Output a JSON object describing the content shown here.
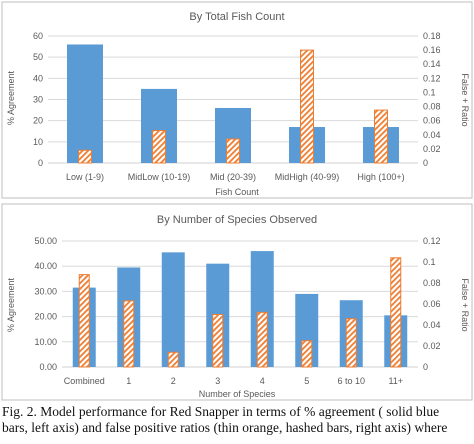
{
  "chart_data": [
    {
      "type": "bar",
      "title": "By Total Fish Count",
      "xlabel": "Fish Count",
      "ylabel": "% Agreement",
      "y2label": "False + Ratio",
      "categories": [
        "Low (1-9)",
        "MidLow (10-19)",
        "Mid (20-39)",
        "MidHigh (40-99)",
        "High (100+)"
      ],
      "ylim": [
        0,
        60
      ],
      "y2lim": [
        0,
        0.18
      ],
      "yticks": [
        "0",
        "10",
        "20",
        "30",
        "40",
        "50",
        "60"
      ],
      "y2ticks": [
        "0",
        "0.02",
        "0.04",
        "0.06",
        "0.08",
        "0.1",
        "0.12",
        "0.14",
        "0.16",
        "0.18"
      ],
      "grid": true,
      "series": [
        {
          "axis": "left",
          "style": "solid-blue",
          "values": [
            56,
            35,
            26,
            17,
            17
          ]
        },
        {
          "axis": "right",
          "style": "orange-hashed",
          "values": [
            0.018,
            0.046,
            0.034,
            0.16,
            0.075
          ]
        }
      ]
    },
    {
      "type": "bar",
      "title": "By Number of Species Observed",
      "xlabel": "Number of Species",
      "ylabel": "% Agreement",
      "y2label": "False + Ratio",
      "categories": [
        "Combined",
        "1",
        "2",
        "3",
        "4",
        "5",
        "6 to 10",
        "11+"
      ],
      "ylim": [
        0,
        50
      ],
      "y2lim": [
        0,
        0.12
      ],
      "yticks": [
        "0.00",
        "10.00",
        "20.00",
        "30.00",
        "40.00",
        "50.00"
      ],
      "y2ticks": [
        "0",
        "0.02",
        "0.04",
        "0.06",
        "0.08",
        "0.1",
        "0.12"
      ],
      "grid": true,
      "series": [
        {
          "axis": "left",
          "style": "solid-blue",
          "values": [
            31.5,
            39.5,
            45.5,
            41,
            46,
            29,
            26.5,
            20.5
          ]
        },
        {
          "axis": "right",
          "style": "orange-hashed",
          "values": [
            0.088,
            0.063,
            0.014,
            0.05,
            0.052,
            0.025,
            0.046,
            0.104
          ]
        }
      ]
    }
  ],
  "caption": {
    "line1": "Fig. 2. Model performance for Red Snapper in terms of % agreement ( solid blue",
    "line2": "bars, left axis) and false positive ratios (thin orange, hashed bars, right axis) where"
  },
  "colors": {
    "blue": "#5b9bd5",
    "orange": "#ed7d31",
    "grid": "#d9d9d9",
    "text": "#595959",
    "frame": "#bfbfbf"
  }
}
